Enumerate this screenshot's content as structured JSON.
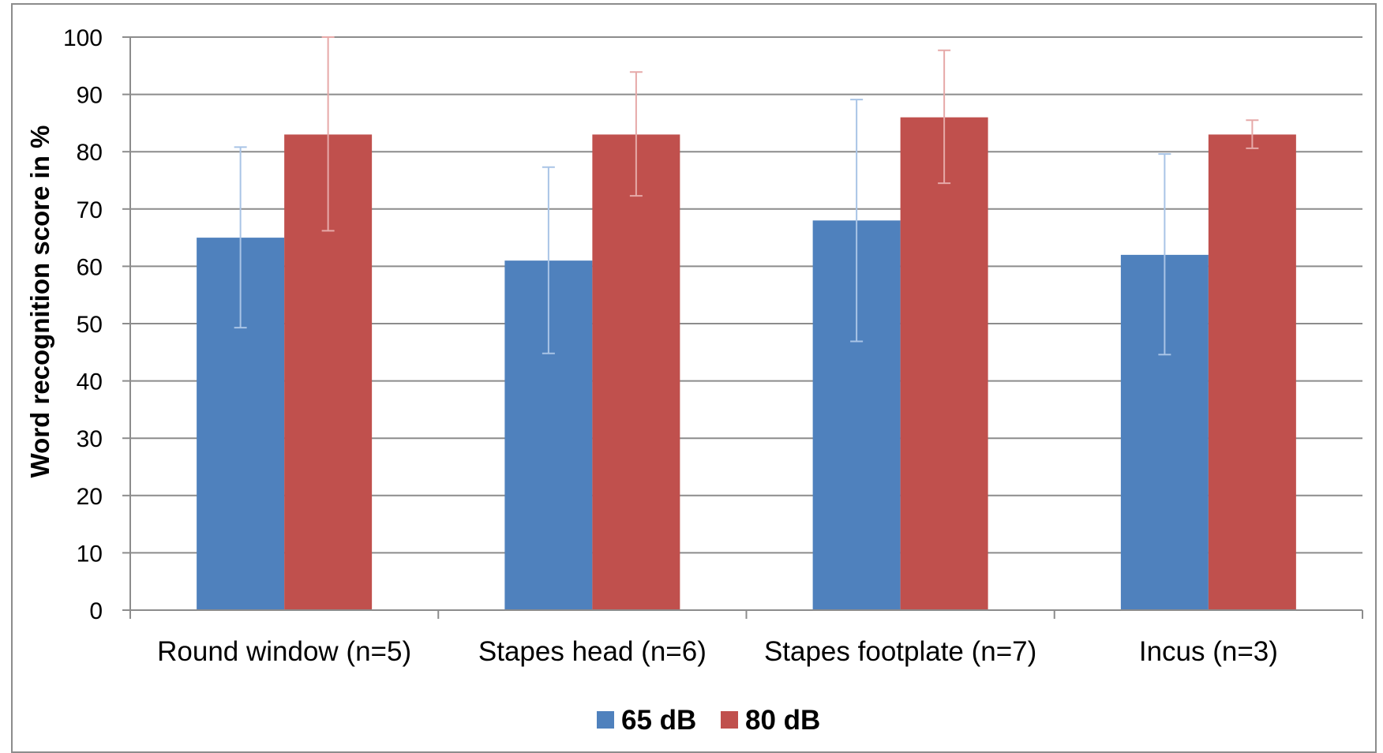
{
  "chart_data": {
    "type": "bar",
    "title": "",
    "xlabel": "",
    "ylabel": "Word recognition score in %",
    "ylim": [
      0,
      100
    ],
    "y_ticks": [
      "0",
      "10",
      "20",
      "30",
      "40",
      "50",
      "60",
      "70",
      "80",
      "90",
      "100"
    ],
    "categories": [
      "Round window (n=5)",
      "Stapes head (n=6)",
      "Stapes footplate (n=7)",
      "Incus (n=3)"
    ],
    "series": [
      {
        "name": "65 dB",
        "color": "#4f81bd",
        "error_color": "#a9c4e6",
        "values": [
          65,
          61,
          68,
          62
        ],
        "error_low": [
          49.3,
          44.8,
          46.9,
          44.6
        ],
        "error_high": [
          80.8,
          77.3,
          89.1,
          79.6
        ]
      },
      {
        "name": "80 dB",
        "color": "#c0504d",
        "error_color": "#e6a9a8",
        "values": [
          83,
          83,
          86,
          83
        ],
        "error_low": [
          66.2,
          72.3,
          74.5,
          80.6
        ],
        "error_high": [
          100,
          93.9,
          97.7,
          85.5
        ]
      }
    ],
    "grid": true,
    "legend": "bottom"
  }
}
